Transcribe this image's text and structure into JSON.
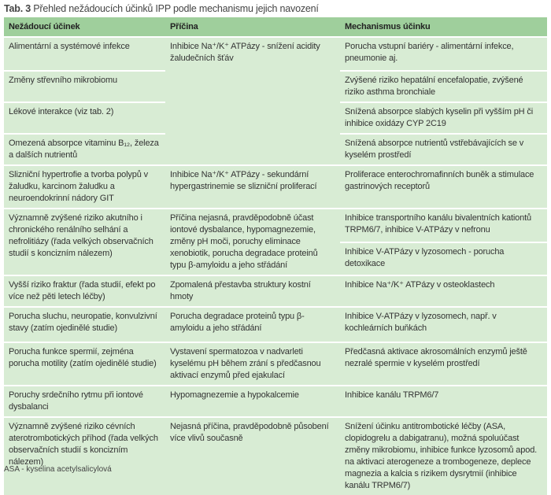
{
  "caption": {
    "label": "Tab. 3",
    "text": "Přehled nežádoucích účinků IPP podle mechanismu jejich navození"
  },
  "headers": [
    "Nežádoucí účinek",
    "Příčina",
    "Mechanismus účinku"
  ],
  "rows": [
    {
      "effect": "Alimentární a systémové infekce",
      "cause": "Inhibice Na⁺/K⁺ ATPázy - snížení acidity žaludečních šťáv",
      "mechanism": "Porucha vstupní bariéry - alimentární infekce, pneumonie aj."
    },
    {
      "effect": "Změny střevního mikrobiomu",
      "mechanism": "Zvýšené riziko hepatální encefalopatie, zvýšené riziko asthma bronchiale"
    },
    {
      "effect": "Lékové interakce (viz tab. 2)",
      "mechanism": "Snížená absorpce slabých kyselin při vyšším pH či inhibice oxidázy CYP 2C19"
    },
    {
      "effect": "Omezená absorpce vitaminu B₁₂, železa a dalších nutrientů",
      "mechanism": "Snížená absorpce nutrientů vstřebávajících se v kyselém prostředí"
    },
    {
      "effect": "Slizniční hypertrofie a tvorba polypů v žaludku, karcinom žaludku a neuroendokrinní nádory GIT",
      "cause": "Inhibice Na⁺/K⁺ ATPázy - sekundární hypergastrinemie se slizniční proliferací",
      "mechanism": "Proliferace enterochromafinních buněk a stimulace gastrinových receptorů"
    },
    {
      "effect": "Významně zvýšené riziko akutního i chronického renálního selhání a nefrolitiázy (řada velkých observačních studií s koncizním nálezem)",
      "cause": "Příčina nejasná, pravděpodobně účast iontové dysbalance, hypomagnezemie, změny pH moči, poruchy eliminace xenobiotik, porucha degradace proteinů typu β-amyloidu a jeho střádání",
      "mechanism": "Inhibice transportního kanálu bivalentních kationtů TRPM6/7, inhibice V-ATPázy v nefronu",
      "mechanism2": "Inhibice V-ATPázy v lyzosomech - porucha detoxikace"
    },
    {
      "effect": "Vyšší riziko fraktur (řada studií, efekt po více než pěti letech léčby)",
      "cause": "Zpomalená přestavba struktury kostní hmoty",
      "mechanism": "Inhibice Na⁺/K⁺ ATPázy v osteoklastech"
    },
    {
      "effect": "Porucha sluchu, neuropatie, konvulzivní stavy (zatím ojedinělé studie)",
      "cause": "Porucha degradace proteinů typu β-amyloidu a jeho střádání",
      "mechanism": "Inhibice V-ATPázy v lyzosomech, např. v kochleárních buňkách"
    },
    {
      "effect": "Porucha funkce spermií, zejména porucha motility (zatím ojedinělé studie)",
      "cause": "Vystavení spermatozoa v nadvarleti kyselému pH během zrání s předčasnou aktivací enzymů před ejakulací",
      "mechanism": "Předčasná aktivace akrosomálních enzymů ještě nezralé spermie v kyselém prostředí"
    },
    {
      "effect": "Poruchy srdečního rytmu při iontové dysbalanci",
      "cause": "Hypomagnezemie a hypokalcemie",
      "mechanism": "Inhibice kanálu TRPM6/7"
    },
    {
      "effect": "Významně zvýšené riziko cévních aterotrombotických příhod (řada velkých observačních studií s koncizním nálezem)",
      "cause": "Nejasná příčina, pravděpodobně působení více vlivů současně",
      "mechanism": "Snížení účinku antitrombotické léčby (ASA, clopidogrelu a dabigatranu), možná spoluúčast změny mikrobiomu, inhibice funkce lyzosomů apod. na aktivaci aterogeneze a trombogeneze, deplece magnezia a kalcia s rizikem dysrytmií (inhibice kanálu TRPM6/7)"
    }
  ],
  "footnote": "ASA - kyselina acetylsalicylová",
  "colors": {
    "header_bg": "#9fcf9c",
    "row_bg": "#d8ecd4"
  }
}
